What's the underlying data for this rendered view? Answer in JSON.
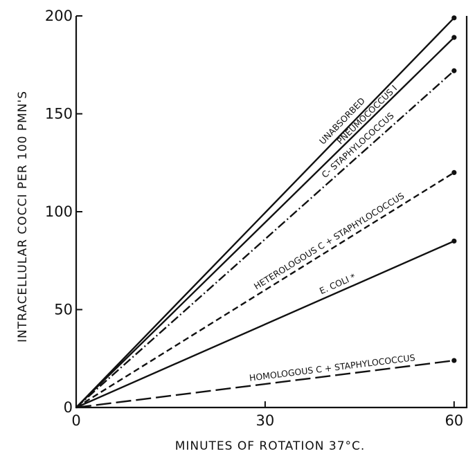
{
  "chart_data": {
    "type": "line",
    "xlabel": "MINUTES OF ROTATION 37°C.",
    "ylabel": "INTRACELLULAR COCCI PER 100 PMN'S",
    "xlim": [
      0,
      62
    ],
    "ylim": [
      0,
      200
    ],
    "x_ticks": [
      0,
      30,
      60
    ],
    "y_ticks": [
      0,
      50,
      100,
      150,
      200
    ],
    "x_tick_labels": [
      "0",
      "30",
      "60"
    ],
    "y_tick_labels": [
      "0",
      "50",
      "100",
      "150",
      "200"
    ],
    "grid": false,
    "legend": "none (series labeled inline along lines)",
    "series": [
      {
        "name": "UNABSORBED",
        "style": "solid",
        "x": [
          0,
          60
        ],
        "y": [
          0,
          199
        ]
      },
      {
        "name": "PNEUMOCOCCUS I",
        "style": "solid",
        "x": [
          0,
          60
        ],
        "y": [
          0,
          189
        ]
      },
      {
        "name": "C- STAPHYLOCOCCUS",
        "style": "dash-dot",
        "x": [
          0,
          60
        ],
        "y": [
          0,
          172
        ]
      },
      {
        "name": "HETEROLOGOUS C + STAPHYLOCOCCUS",
        "style": "dashed",
        "x": [
          0,
          60
        ],
        "y": [
          0,
          120
        ]
      },
      {
        "name": "E. COLI *",
        "style": "solid",
        "x": [
          0,
          60
        ],
        "y": [
          0,
          85
        ]
      },
      {
        "name": "HOMOLOGOUS C + STAPHYLOCOCCUS",
        "style": "long-dash",
        "x": [
          0,
          60
        ],
        "y": [
          0,
          24
        ]
      }
    ]
  }
}
